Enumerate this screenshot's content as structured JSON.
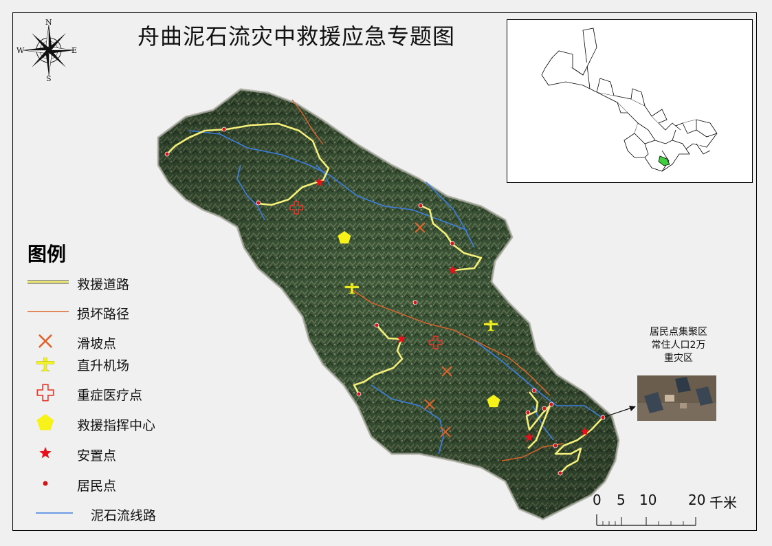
{
  "title": "舟曲泥石流灾中救援应急专题图",
  "compass": {
    "n": "N",
    "s": "S",
    "e": "E",
    "w": "W"
  },
  "legend": {
    "heading": "图例",
    "items": [
      {
        "label": "救援道路",
        "symbol": "rescue-road-line"
      },
      {
        "label": "损坏路径",
        "symbol": "damaged-road-line"
      },
      {
        "label": "滑坡点",
        "symbol": "landslide-x-icon"
      },
      {
        "label": "直升机场",
        "symbol": "helicopter-plane-icon"
      },
      {
        "label": "重症医疗点",
        "symbol": "medical-cross-icon"
      },
      {
        "label": "救援指挥中心",
        "symbol": "command-pentagon-icon"
      },
      {
        "label": "安置点",
        "symbol": "resettlement-star-icon"
      },
      {
        "label": "居民点",
        "symbol": "residential-dot-icon"
      },
      {
        "label": "泥石流线路",
        "symbol": "debris-flow-line"
      }
    ]
  },
  "callout": {
    "line1": "居民点集聚区",
    "line2": "常住人口2万",
    "line3": "重灾区"
  },
  "scale_bar": {
    "ticks": [
      "0",
      "5",
      "10",
      "20"
    ],
    "unit": "千米"
  },
  "colors": {
    "rescue_road": "#f5f07a",
    "damaged_road": "#e0642a",
    "debris_flow": "#3d7fe0",
    "landslide": "#e0642a",
    "helicopter": "#f2f22a",
    "medical": "#e8372a",
    "command": "#f7f21a",
    "resettlement": "#e8101a",
    "residential": "#d01818",
    "inset_highlight": "#3ecf3e"
  }
}
